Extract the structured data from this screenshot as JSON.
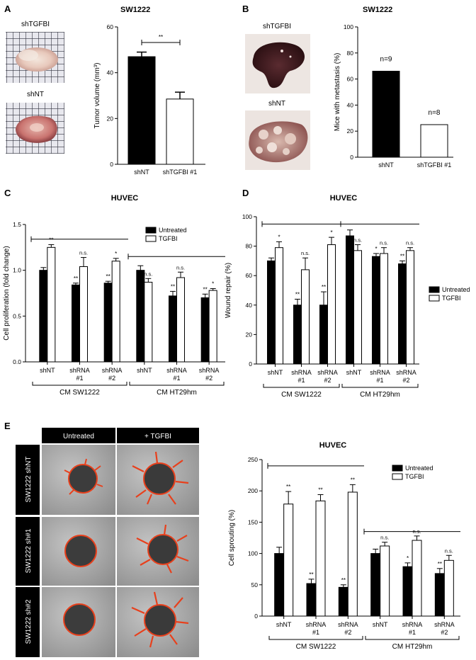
{
  "panels": {
    "A": {
      "label": "A",
      "title": "SW1222",
      "image_labels": [
        "shTGFBI",
        "shNT"
      ],
      "sig": "**",
      "chart_data": {
        "type": "bar",
        "categories": [
          "shNT",
          "shTGFBI #1"
        ],
        "values": [
          47,
          28.5
        ],
        "errors": [
          2,
          3
        ],
        "fills": [
          "#000000",
          "#ffffff"
        ],
        "ylabel": "Tumor volume (mm³)",
        "ylim": [
          0,
          60
        ],
        "yticks": [
          0,
          20,
          40,
          60
        ]
      }
    },
    "B": {
      "label": "B",
      "title": "SW1222",
      "image_labels": [
        "shTGFBI",
        "shNT"
      ],
      "chart_data": {
        "type": "bar",
        "categories": [
          "shNT",
          "shTGFBI #1"
        ],
        "values": [
          66,
          25
        ],
        "annotations": [
          "n=9",
          "n=8"
        ],
        "fills": [
          "#000000",
          "#ffffff"
        ],
        "ylabel": "Mice with metastasis (%)",
        "ylim": [
          0,
          100
        ],
        "yticks": [
          0,
          20,
          40,
          60,
          80,
          100
        ]
      }
    },
    "C": {
      "label": "C",
      "title": "HUVEC",
      "groups": [
        "CM SW1222",
        "CM HT29hm"
      ],
      "chart_data": {
        "type": "bar",
        "ylabel": "Cell proliferation (fold change)",
        "ylim": [
          0,
          1.5
        ],
        "yticks": [
          "0.0",
          "0.5",
          "1.0",
          "1.5"
        ],
        "categories": [
          {
            "l1": "shNT",
            "l2": ""
          },
          {
            "l1": "shRNA",
            "l2": "#1"
          },
          {
            "l1": "shRNA",
            "l2": "#2"
          },
          {
            "l1": "shNT",
            "l2": ""
          },
          {
            "l1": "shRNA",
            "l2": "#1"
          },
          {
            "l1": "shRNA",
            "l2": "#2"
          }
        ],
        "series": [
          {
            "name": "Untreated",
            "fill": "#000000",
            "values": [
              1.0,
              0.84,
              0.86,
              1.0,
              0.72,
              0.7
            ],
            "errors": [
              0.03,
              0.02,
              0.02,
              0.05,
              0.05,
              0.04
            ],
            "sig": [
              "",
              "**",
              "**",
              "",
              "**",
              "**"
            ]
          },
          {
            "name": "TGFBI",
            "fill": "#ffffff",
            "values": [
              1.25,
              1.04,
              1.1,
              0.87,
              0.92,
              0.78
            ],
            "errors": [
              0.03,
              0.1,
              0.03,
              0.04,
              0.06,
              0.02
            ],
            "sig": [
              "**",
              "n.s.",
              "*",
              "n.s.",
              "n.s.",
              "*"
            ]
          }
        ]
      }
    },
    "D": {
      "label": "D",
      "title": "HUVEC",
      "groups": [
        "CM SW1222",
        "CM HT29hm"
      ],
      "chart_data": {
        "type": "bar",
        "ylabel": "Wound repair (%)",
        "ylim": [
          0,
          100
        ],
        "yticks": [
          0,
          20,
          40,
          60,
          80,
          100
        ],
        "categories": [
          {
            "l1": "shNT",
            "l2": ""
          },
          {
            "l1": "shRNA",
            "l2": "#1"
          },
          {
            "l1": "shRNA",
            "l2": "#2"
          },
          {
            "l1": "shNT",
            "l2": ""
          },
          {
            "l1": "shRNA",
            "l2": "#1"
          },
          {
            "l1": "shRNA",
            "l2": "#2"
          }
        ],
        "series": [
          {
            "name": "Untreated",
            "fill": "#000000",
            "values": [
              70,
              40,
              40,
              87,
              73,
              68
            ],
            "errors": [
              2,
              4,
              9,
              4,
              2,
              2
            ],
            "sig": [
              "",
              "**",
              "**",
              "",
              "*",
              "**"
            ]
          },
          {
            "name": "TGFBI",
            "fill": "#ffffff",
            "values": [
              79,
              64,
              81,
              77,
              75,
              77
            ],
            "errors": [
              4,
              8,
              5,
              4,
              4,
              2
            ],
            "sig": [
              "*",
              "n.s.",
              "*",
              "n.s.",
              "n.s.",
              "n.s."
            ]
          }
        ]
      }
    },
    "E": {
      "label": "E",
      "title": "HUVEC",
      "col_headers": [
        "Untreated",
        "+ TGFBI"
      ],
      "row_headers": [
        "SW1222 shNT",
        "SW1222 sh#1",
        "SW1222 sh#2"
      ],
      "groups": [
        "CM SW1222",
        "CM HT29hm"
      ],
      "chart_data": {
        "type": "bar",
        "ylabel": "Cell sprouting (%)",
        "ylim": [
          0,
          250
        ],
        "yticks": [
          0,
          50,
          100,
          150,
          200,
          250
        ],
        "categories": [
          {
            "l1": "shNT",
            "l2": ""
          },
          {
            "l1": "shRNA",
            "l2": "#1"
          },
          {
            "l1": "shRNA",
            "l2": "#2"
          },
          {
            "l1": "shNT",
            "l2": ""
          },
          {
            "l1": "shRNA",
            "l2": "#1"
          },
          {
            "l1": "shRNA",
            "l2": "#2"
          }
        ],
        "series": [
          {
            "name": "Untreated",
            "fill": "#000000",
            "values": [
              100,
              52,
              46,
              100,
              79,
              68
            ],
            "errors": [
              10,
              7,
              4,
              7,
              6,
              8
            ],
            "sig": [
              "",
              "**",
              "**",
              "",
              "*",
              "**"
            ]
          },
          {
            "name": "TGFBI",
            "fill": "#ffffff",
            "values": [
              179,
              184,
              198,
              112,
              121,
              89
            ],
            "errors": [
              20,
              10,
              12,
              6,
              7,
              8
            ],
            "sig": [
              "**",
              "**",
              "**",
              "n.s.",
              "n.s.",
              "n.s."
            ]
          }
        ]
      }
    }
  }
}
